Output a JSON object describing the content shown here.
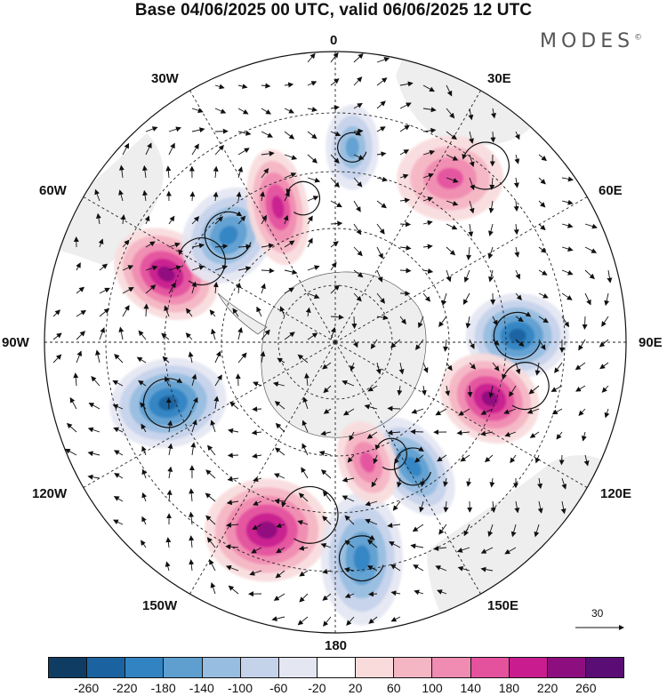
{
  "title": "Base 04/06/2025 00 UTC, valid 06/06/2025 12 UTC",
  "brand": "MODES",
  "brand_mark": "©",
  "map": {
    "projection": "south-polar-stereographic",
    "longitude_labels": [
      "0",
      "30E",
      "60E",
      "90E",
      "120E",
      "150E",
      "180",
      "150W",
      "120W",
      "90W",
      "60W",
      "30W"
    ],
    "field_colors": {
      "negative": [
        "#0e3c63",
        "#1b63a0",
        "#3283c2",
        "#5e9fd0",
        "#97bde0",
        "#c5d3ea",
        "#e4e6f2"
      ],
      "neutral": "#ffffff",
      "positive": [
        "#f9dbdc",
        "#f5b6c4",
        "#f08bb1",
        "#e4529e",
        "#c81c8f",
        "#8d0f7f",
        "#5a0e75"
      ]
    },
    "land_color": "#eeeeee",
    "features": [
      {
        "kind": "anticyclone",
        "sign": "positive",
        "level": 4,
        "near": "90W"
      },
      {
        "kind": "cyclone",
        "sign": "negative",
        "level": 4,
        "near": "90E"
      },
      {
        "kind": "anticyclone",
        "sign": "positive",
        "level": 4,
        "near": "135W"
      },
      {
        "kind": "cyclone",
        "sign": "negative",
        "level": 4,
        "near": "105W"
      },
      {
        "kind": "anticyclone",
        "sign": "positive",
        "level": 4,
        "near": "105E"
      },
      {
        "kind": "cyclone",
        "sign": "negative",
        "level": 3,
        "near": "170E"
      },
      {
        "kind": "cyclone",
        "sign": "negative",
        "level": 3,
        "near": "135E"
      },
      {
        "kind": "cyclone",
        "sign": "negative",
        "level": 3,
        "near": "40W"
      },
      {
        "kind": "anticyclone",
        "sign": "positive",
        "level": 3,
        "near": "20W"
      },
      {
        "kind": "anticyclone",
        "sign": "positive",
        "level": 2,
        "near": "40E"
      },
      {
        "kind": "cyclone",
        "sign": "negative",
        "level": 2,
        "near": "5E"
      },
      {
        "kind": "anticyclone",
        "sign": "positive",
        "level": 2,
        "near": "160E"
      }
    ]
  },
  "vector_reference": {
    "value": "30"
  },
  "colorbar": {
    "colors": [
      "#0e3c63",
      "#1b63a0",
      "#3283c2",
      "#5e9fd0",
      "#97bde0",
      "#c5d3ea",
      "#e4e6f2",
      "#ffffff",
      "#f9dbdc",
      "#f5b6c4",
      "#f08bb1",
      "#e4529e",
      "#c81c8f",
      "#8d0f7f",
      "#5a0e75"
    ],
    "tick_labels": [
      "-260",
      "-220",
      "-180",
      "-140",
      "-100",
      "-60",
      "-20",
      "20",
      "60",
      "100",
      "140",
      "180",
      "220",
      "260"
    ]
  }
}
